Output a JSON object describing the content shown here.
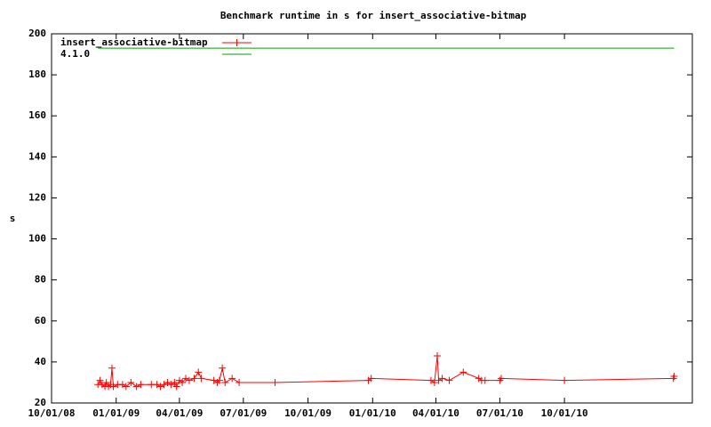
{
  "chart_data": {
    "type": "line",
    "title": "Benchmark runtime in s for insert_associative-bitmap",
    "y_label": "s",
    "legend": "top left",
    "marker": "plus",
    "xlim": [
      "10/01/08",
      "04/01/11"
    ],
    "xticks": [
      "10/01/08",
      "01/01/09",
      "04/01/09",
      "07/01/09",
      "10/01/09",
      "01/01/10",
      "04/01/10",
      "07/01/10",
      "10/01/10"
    ],
    "ylim": [
      20,
      200
    ],
    "yticks": [
      20,
      40,
      60,
      80,
      100,
      120,
      140,
      160,
      180,
      200
    ],
    "series": [
      {
        "name": "insert_associative-bitmap",
        "color": "#ff0000",
        "markers": true,
        "x": [
          "12/06/08",
          "12/09/08",
          "12/12/08",
          "12/16/08",
          "12/18/08",
          "12/21/08",
          "12/24/08",
          "12/26/08",
          "12/28/08",
          "01/03/09",
          "01/10/09",
          "01/15/09",
          "01/22/09",
          "01/30/09",
          "02/05/09",
          "02/20/09",
          "02/28/09",
          "03/05/09",
          "03/10/09",
          "03/15/09",
          "03/20/09",
          "03/25/09",
          "03/28/09",
          "04/01/09",
          "04/05/09",
          "04/10/09",
          "04/15/09",
          "04/22/09",
          "04/28/09",
          "05/02/09",
          "05/20/09",
          "05/25/09",
          "05/28/09",
          "06/01/09",
          "06/05/09",
          "06/15/09",
          "06/25/09",
          "08/15/09",
          "12/26/09",
          "12/30/09",
          "03/25/10",
          "03/30/10",
          "04/03/10",
          "04/05/10",
          "04/10/10",
          "04/20/10",
          "05/10/10",
          "06/01/10",
          "06/05/10",
          "06/10/10",
          "07/01/10",
          "07/03/10",
          "10/01/10",
          "03/05/11",
          "03/06/11"
        ],
        "values": [
          29,
          31,
          29,
          28,
          30,
          28,
          29,
          37,
          28,
          29,
          29,
          28,
          30,
          28,
          29,
          29,
          29,
          28,
          29,
          30,
          29,
          30,
          28,
          31,
          30,
          32,
          31,
          32,
          35,
          32,
          31,
          30,
          31,
          37,
          30,
          32,
          30,
          30,
          31,
          32,
          31,
          30,
          43,
          31,
          32,
          31,
          35,
          32,
          31,
          31,
          31,
          32,
          31,
          32,
          33
        ]
      },
      {
        "name": "4.1.0",
        "color": "#00a000",
        "markers": false,
        "x": [
          "12/06/08",
          "03/06/11"
        ],
        "values": [
          193,
          193
        ]
      }
    ]
  }
}
